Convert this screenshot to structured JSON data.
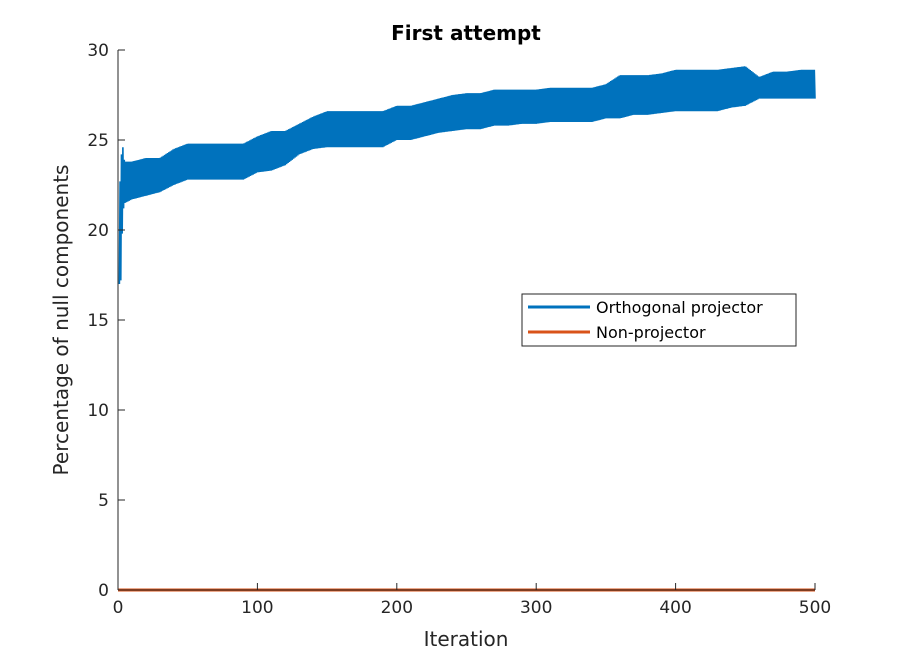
{
  "chart_data": {
    "type": "line",
    "title": "First attempt",
    "xlabel": "Iteration",
    "ylabel": "Percentage of null components",
    "xlim": [
      0,
      500
    ],
    "ylim": [
      0,
      30
    ],
    "xticks": [
      0,
      100,
      200,
      300,
      400,
      500
    ],
    "yticks": [
      0,
      5,
      10,
      15,
      20,
      25,
      30
    ],
    "xtick_labels": [
      "0",
      "100",
      "200",
      "300",
      "400",
      "500"
    ],
    "ytick_labels": [
      "0",
      "5",
      "10",
      "15",
      "20",
      "25",
      "30"
    ],
    "grid": false,
    "legend_position": "center-right",
    "series": [
      {
        "name": "Orthogonal projector",
        "color": "#0072BD",
        "oscillating_band": true,
        "x": [
          1,
          2,
          3,
          4,
          5,
          10,
          20,
          30,
          40,
          50,
          60,
          70,
          80,
          90,
          100,
          110,
          120,
          130,
          140,
          150,
          160,
          170,
          180,
          190,
          200,
          210,
          220,
          230,
          240,
          250,
          260,
          270,
          280,
          290,
          300,
          310,
          320,
          330,
          340,
          350,
          360,
          370,
          380,
          390,
          400,
          410,
          420,
          430,
          440,
          450,
          460,
          470,
          480,
          490,
          500
        ],
        "low": [
          17.0,
          17.2,
          19.8,
          21.2,
          21.5,
          21.7,
          21.9,
          22.1,
          22.5,
          22.8,
          22.8,
          22.8,
          22.8,
          22.8,
          23.2,
          23.3,
          23.6,
          24.2,
          24.5,
          24.6,
          24.6,
          24.6,
          24.6,
          24.6,
          25.0,
          25.0,
          25.2,
          25.4,
          25.5,
          25.6,
          25.6,
          25.8,
          25.8,
          25.9,
          25.9,
          26.0,
          26.0,
          26.0,
          26.0,
          26.2,
          26.2,
          26.4,
          26.4,
          26.5,
          26.6,
          26.6,
          26.6,
          26.6,
          26.8,
          26.9,
          27.3,
          27.3,
          27.3,
          27.3,
          27.3
        ],
        "high": [
          22.2,
          23.2,
          25.2,
          24.0,
          23.8,
          23.8,
          24.0,
          24.0,
          24.5,
          24.8,
          24.8,
          24.8,
          24.8,
          24.8,
          25.2,
          25.5,
          25.5,
          25.9,
          26.3,
          26.6,
          26.6,
          26.6,
          26.6,
          26.6,
          26.9,
          26.9,
          27.1,
          27.3,
          27.5,
          27.6,
          27.6,
          27.8,
          27.8,
          27.8,
          27.8,
          27.9,
          27.9,
          27.9,
          27.9,
          28.1,
          28.6,
          28.6,
          28.6,
          28.7,
          28.9,
          28.9,
          28.9,
          28.9,
          29.0,
          29.1,
          28.5,
          28.8,
          28.8,
          28.9,
          28.9
        ]
      },
      {
        "name": "Non-projector",
        "color": "#D95319",
        "x": [
          0,
          500
        ],
        "values": [
          0,
          0
        ]
      }
    ]
  }
}
